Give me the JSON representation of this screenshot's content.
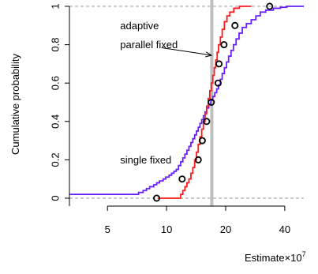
{
  "chart_data": {
    "type": "line",
    "title": "",
    "xlabel": "Estimate",
    "xlabel_suffix": "×10",
    "xlabel_exponent": "7",
    "ylabel": "Cumulative probability",
    "x_scale": "log",
    "xlim": [
      3.2,
      50
    ],
    "ylim": [
      0,
      1
    ],
    "x_ticks": [
      5,
      10,
      20,
      40
    ],
    "x_tick_labels": [
      "5",
      "10",
      "20",
      "40"
    ],
    "y_ticks": [
      0,
      0.2,
      0.4,
      0.6,
      0.8,
      1
    ],
    "y_tick_labels": [
      "0",
      "0.2",
      "0.4",
      "0.6",
      "0.8",
      "1"
    ],
    "reference_lines": {
      "true_value_x": 17.0,
      "dashed_y": [
        0,
        1
      ]
    },
    "colors": {
      "single": "#6a1fff",
      "parallel": "#ff1a1a",
      "truth": "#bfbfbf",
      "dashed": "#999999"
    },
    "series": [
      {
        "name": "single fixed",
        "style": "step",
        "points": [
          [
            2.5,
            0.02
          ],
          [
            7.0,
            0.02
          ],
          [
            7.2,
            0.03
          ],
          [
            7.6,
            0.04
          ],
          [
            7.9,
            0.05
          ],
          [
            8.2,
            0.06
          ],
          [
            8.6,
            0.07
          ],
          [
            8.9,
            0.08
          ],
          [
            9.2,
            0.09
          ],
          [
            9.6,
            0.1
          ],
          [
            9.9,
            0.11
          ],
          [
            10.3,
            0.12
          ],
          [
            10.6,
            0.13
          ],
          [
            10.9,
            0.14
          ],
          [
            11.2,
            0.15
          ],
          [
            11.5,
            0.17
          ],
          [
            11.8,
            0.19
          ],
          [
            12.1,
            0.21
          ],
          [
            12.4,
            0.23
          ],
          [
            12.7,
            0.25
          ],
          [
            13.0,
            0.27
          ],
          [
            13.3,
            0.29
          ],
          [
            13.6,
            0.31
          ],
          [
            13.9,
            0.33
          ],
          [
            14.2,
            0.35
          ],
          [
            14.5,
            0.37
          ],
          [
            14.8,
            0.39
          ],
          [
            15.1,
            0.41
          ],
          [
            15.4,
            0.43
          ],
          [
            15.7,
            0.45
          ],
          [
            16.0,
            0.47
          ],
          [
            16.4,
            0.49
          ],
          [
            16.8,
            0.51
          ],
          [
            17.2,
            0.53
          ],
          [
            17.6,
            0.55
          ],
          [
            18.0,
            0.57
          ],
          [
            18.4,
            0.59
          ],
          [
            18.8,
            0.62
          ],
          [
            19.2,
            0.65
          ],
          [
            19.7,
            0.68
          ],
          [
            20.2,
            0.71
          ],
          [
            20.7,
            0.74
          ],
          [
            21.3,
            0.77
          ],
          [
            21.9,
            0.8
          ],
          [
            22.6,
            0.83
          ],
          [
            23.4,
            0.86
          ],
          [
            24.3,
            0.89
          ],
          [
            25.5,
            0.91
          ],
          [
            27.0,
            0.93
          ],
          [
            28.5,
            0.95
          ],
          [
            30.0,
            0.97
          ],
          [
            32.0,
            0.98
          ],
          [
            35.0,
            0.99
          ],
          [
            38.0,
            0.995
          ],
          [
            41.0,
            1.0
          ],
          [
            50,
            1.0
          ]
        ]
      },
      {
        "name": "parallel fixed",
        "style": "step",
        "points": [
          [
            9.0,
            0.0
          ],
          [
            11.5,
            0.0
          ],
          [
            11.8,
            0.02
          ],
          [
            12.1,
            0.04
          ],
          [
            12.4,
            0.06
          ],
          [
            12.7,
            0.08
          ],
          [
            13.0,
            0.1
          ],
          [
            13.3,
            0.13
          ],
          [
            13.6,
            0.16
          ],
          [
            13.9,
            0.2
          ],
          [
            14.2,
            0.24
          ],
          [
            14.5,
            0.28
          ],
          [
            14.8,
            0.32
          ],
          [
            15.1,
            0.36
          ],
          [
            15.4,
            0.4
          ],
          [
            15.7,
            0.44
          ],
          [
            16.0,
            0.48
          ],
          [
            16.3,
            0.52
          ],
          [
            16.6,
            0.56
          ],
          [
            16.9,
            0.6
          ],
          [
            17.2,
            0.64
          ],
          [
            17.5,
            0.68
          ],
          [
            17.8,
            0.72
          ],
          [
            18.1,
            0.76
          ],
          [
            18.4,
            0.8
          ],
          [
            18.8,
            0.84
          ],
          [
            19.2,
            0.88
          ],
          [
            19.7,
            0.92
          ],
          [
            20.3,
            0.95
          ],
          [
            21.0,
            0.97
          ],
          [
            22.0,
            0.99
          ],
          [
            23.5,
            1.0
          ],
          [
            27.0,
            1.0
          ]
        ]
      },
      {
        "name": "adaptive",
        "style": "points",
        "points": [
          [
            8.9,
            0.0
          ],
          [
            12.0,
            0.1
          ],
          [
            14.5,
            0.2
          ],
          [
            15.2,
            0.3
          ],
          [
            16.0,
            0.4
          ],
          [
            16.9,
            0.5
          ],
          [
            18.3,
            0.6
          ],
          [
            18.5,
            0.7
          ],
          [
            19.6,
            0.8
          ],
          [
            22.3,
            0.9
          ],
          [
            33.5,
            1.0
          ]
        ]
      }
    ],
    "annotations": [
      {
        "text": "adaptive",
        "x": 5.8,
        "y": 0.9
      },
      {
        "text": "parallel fixed",
        "x": 5.8,
        "y": 0.8
      },
      {
        "text": "single fixed",
        "x": 5.8,
        "y": 0.2
      }
    ]
  }
}
